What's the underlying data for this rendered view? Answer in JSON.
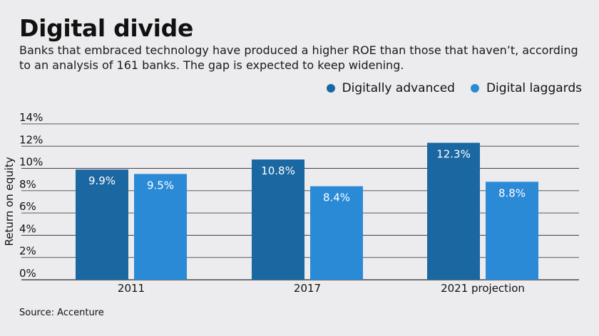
{
  "title": "Digital divide",
  "subtitle": "Banks that embraced technology have produced a higher ROE than those that haven’t, according to an analysis of 161 banks. The gap is expected to keep widening.",
  "source": "Source: Accenture",
  "colors": {
    "advanced": "#1b67a1",
    "laggards": "#2a8ad6",
    "grid": "#2a2a2a"
  },
  "chart_data": {
    "type": "bar",
    "categories": [
      "2011",
      "2017",
      "2021 projection"
    ],
    "series": [
      {
        "name": "Digitally advanced",
        "values": [
          9.9,
          10.8,
          12.3
        ],
        "labels": [
          "9.9%",
          "10.8%",
          "12.3%"
        ]
      },
      {
        "name": "Digital laggards",
        "values": [
          9.5,
          8.4,
          8.8
        ],
        "labels": [
          "9.5%",
          "8.4%",
          "8.8%"
        ]
      }
    ],
    "ylabel": "Return on equity",
    "ylim": [
      0,
      14
    ],
    "yticks": [
      "0%",
      "2%",
      "4%",
      "6%",
      "8%",
      "10%",
      "12%",
      "14%"
    ],
    "legend_position": "top-right",
    "grid": true
  }
}
